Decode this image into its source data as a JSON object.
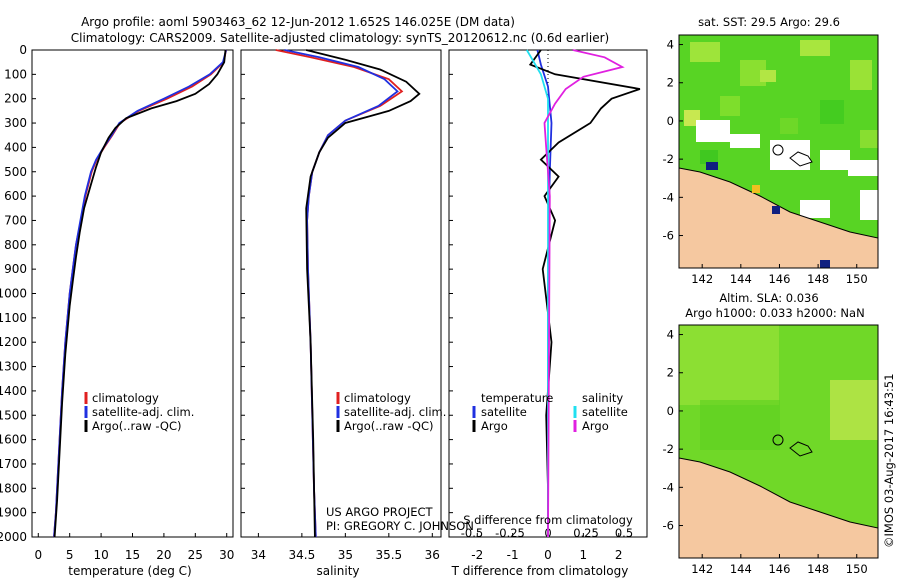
{
  "header": {
    "line1": "Argo profile: aoml 5903463_62 12-Jun-2012 1.652S 146.025E (DM data)",
    "line2": "Climatology: CARS2009. Satellite-adjusted climatology: synTS_20120612.nc (0.6d earlier)"
  },
  "colors": {
    "clim": "#e02020",
    "sat": "#2030e0",
    "argo": "#000000",
    "sat_s": "#20e0f0",
    "argo_s": "#e020e0",
    "land": "#f5c8a0",
    "sea_green": "#50d020",
    "bg_green": "#90e040"
  },
  "chart_data": [
    {
      "type": "line",
      "panel": "temperature",
      "xlabel": "temperature (deg C)",
      "xticks": [
        "0",
        "5",
        "10",
        "15",
        "20",
        "25",
        "30"
      ],
      "xlim": [
        -1,
        31
      ],
      "ylim": [
        2000,
        0
      ],
      "yticks": [
        "0",
        "100",
        "200",
        "300",
        "400",
        "500",
        "600",
        "700",
        "800",
        "900",
        "1000",
        "1100",
        "1200",
        "1300",
        "1400",
        "1500",
        "1600",
        "1700",
        "1800",
        "1900",
        "2000"
      ],
      "legend": [
        "climatology",
        "satellite-adj. clim.",
        "Argo(..raw -QC)"
      ],
      "series": [
        {
          "name": "climatology",
          "color": "#e02020",
          "x": [
            29.9,
            29.5,
            27.5,
            24.5,
            20.5,
            16,
            13,
            11.8,
            10.5,
            9.3,
            8.5,
            7.5,
            6.8,
            6,
            5.5,
            5,
            4.3,
            3.8,
            3.4,
            3,
            2.8,
            2.5
          ],
          "y": [
            0,
            50,
            100,
            150,
            200,
            250,
            300,
            350,
            400,
            450,
            500,
            600,
            700,
            800,
            900,
            1000,
            1200,
            1400,
            1600,
            1800,
            1900,
            2000
          ]
        },
        {
          "name": "satellite-adj. clim.",
          "color": "#2030e0",
          "x": [
            29.9,
            29.4,
            27.3,
            24,
            20,
            15.8,
            12.9,
            11.7,
            10.4,
            9.2,
            8.4,
            7.4,
            6.7,
            6,
            5.5,
            5,
            4.3,
            3.8,
            3.4,
            3,
            2.8,
            2.5
          ],
          "y": [
            0,
            50,
            100,
            150,
            200,
            250,
            300,
            350,
            400,
            450,
            500,
            600,
            700,
            800,
            900,
            1000,
            1200,
            1400,
            1600,
            1800,
            1900,
            2000
          ]
        },
        {
          "name": "Argo(..raw -QC)",
          "color": "#000000",
          "x": [
            29.8,
            29.6,
            28.5,
            27.2,
            25,
            22,
            18,
            14,
            12.3,
            11.2,
            10,
            9.2,
            8.3,
            7.3,
            6.6,
            6,
            5.5,
            5,
            4.3,
            3.8,
            3.4,
            3,
            2.6
          ],
          "y": [
            0,
            50,
            100,
            140,
            180,
            210,
            240,
            280,
            320,
            360,
            420,
            480,
            560,
            650,
            750,
            850,
            950,
            1050,
            1250,
            1450,
            1650,
            1850,
            2000
          ]
        }
      ]
    },
    {
      "type": "line",
      "panel": "salinity",
      "xlabel": "salinity",
      "xticks": [
        "34",
        "34.5",
        "35",
        "35.5",
        "36"
      ],
      "xlim": [
        33.8,
        36.1
      ],
      "ylim": [
        2000,
        0
      ],
      "legend": [
        "climatology",
        "satellite-adj. clim.",
        "Argo(..raw -QC)"
      ],
      "annotation": [
        "US ARGO PROJECT",
        "PI: GREGORY C. JOHNSON"
      ],
      "series": [
        {
          "name": "climatology",
          "color": "#e02020",
          "x": [
            34.2,
            34.6,
            35.1,
            35.5,
            35.65,
            35.4,
            35.0,
            34.8,
            34.7,
            34.62,
            34.58,
            34.56,
            34.57,
            34.6,
            34.62,
            34.64,
            34.66
          ],
          "y": [
            0,
            30,
            70,
            120,
            170,
            230,
            290,
            350,
            420,
            500,
            600,
            700,
            900,
            1200,
            1500,
            1800,
            2000
          ]
        },
        {
          "name": "satellite-adj. clim.",
          "color": "#2030e0",
          "x": [
            34.3,
            34.7,
            35.15,
            35.45,
            35.6,
            35.38,
            35.0,
            34.8,
            34.7,
            34.62,
            34.58,
            34.56,
            34.57,
            34.6,
            34.62,
            34.64,
            34.66
          ],
          "y": [
            0,
            30,
            70,
            120,
            170,
            230,
            290,
            350,
            420,
            500,
            600,
            700,
            900,
            1200,
            1500,
            1800,
            2000
          ]
        },
        {
          "name": "Argo(..raw -QC)",
          "color": "#000000",
          "x": [
            34.55,
            35.0,
            35.4,
            35.7,
            35.85,
            35.75,
            35.5,
            35.0,
            34.8,
            34.7,
            34.6,
            34.55,
            34.56,
            34.6,
            34.63,
            34.65
          ],
          "y": [
            0,
            40,
            80,
            130,
            180,
            210,
            250,
            300,
            360,
            420,
            520,
            650,
            900,
            1200,
            1600,
            2000
          ]
        }
      ]
    },
    {
      "type": "line",
      "panel": "difference",
      "xlabel": "T difference from climatology",
      "xticks": [
        "-2",
        "-1",
        "0",
        "1",
        "2"
      ],
      "xlim": [
        -2.8,
        2.8
      ],
      "xlabel2": "S difference from climatology",
      "xticks2": [
        "-0.5",
        "-0.25",
        "0",
        "0.25",
        "0.5"
      ],
      "legend_left": {
        "title": "temperature",
        "items": [
          "satellite",
          "Argo"
        ]
      },
      "legend_right": {
        "title": "salinity",
        "items": [
          "satellite",
          "Argo"
        ]
      },
      "series": [
        {
          "name": "T satellite",
          "color": "#2030e0",
          "x": [
            -0.3,
            -0.2,
            0,
            0.1,
            0.05,
            0.02,
            0,
            0,
            0,
            0
          ],
          "y": [
            0,
            60,
            150,
            300,
            500,
            700,
            1000,
            1400,
            1800,
            2000
          ]
        },
        {
          "name": "T Argo",
          "color": "#000000",
          "x": [
            -0.2,
            -0.5,
            0.2,
            2.6,
            1.8,
            1.5,
            1.2,
            0.3,
            -0.2,
            0.3,
            -0.1,
            0.2,
            -0.15,
            0.1,
            -0.05,
            0,
            0
          ],
          "y": [
            0,
            60,
            100,
            160,
            200,
            240,
            300,
            380,
            450,
            520,
            600,
            700,
            900,
            1200,
            1500,
            1800,
            2000
          ]
        },
        {
          "name": "S satellite",
          "color": "#20e0f0",
          "x": [
            -0.6,
            -0.4,
            -0.2,
            0,
            0,
            0,
            0,
            0,
            0
          ],
          "y": [
            0,
            50,
            100,
            200,
            400,
            800,
            1200,
            1600,
            2000
          ]
        },
        {
          "name": "S Argo",
          "color": "#e020e0",
          "x": [
            0.7,
            1.6,
            2.1,
            1.0,
            0.5,
            0.2,
            -0.1,
            -0.05,
            0.05,
            0
          ],
          "y": [
            0,
            30,
            70,
            110,
            160,
            220,
            300,
            400,
            600,
            2000
          ]
        }
      ]
    }
  ],
  "maps": {
    "sst_title": "sat. SST: 29.5  Argo: 29.6",
    "sla_title1": "Altim. SLA: 0.036",
    "sla_title2": "Argo h1000: 0.033  h2000: NaN",
    "xticks": [
      "142",
      "144",
      "146",
      "148",
      "150"
    ],
    "yticks": [
      "4",
      "2",
      "0",
      "-2",
      "-4",
      "-6"
    ],
    "float_lon": 146.025,
    "float_lat": -1.652
  },
  "footer": {
    "stamp": "©IMOS 03-Aug-2017 16:43:51"
  }
}
